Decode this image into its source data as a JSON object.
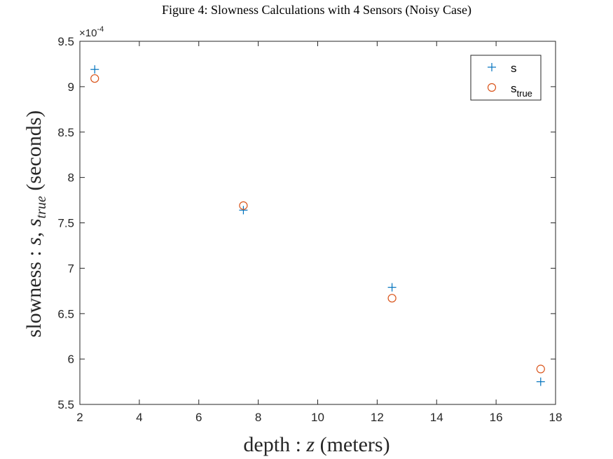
{
  "chart_data": {
    "type": "scatter",
    "title": "Figure 4: Slowness Calculations with 4 Sensors (Noisy Case)",
    "xlabel": "depth : z (meters)",
    "ylabel": "slowness : s, s_true (seconds)",
    "xlabel_parts": {
      "pre": "depth : ",
      "var": "z",
      "post": " (meters)"
    },
    "ylabel_parts": {
      "pre": "slowness : ",
      "var1": "s",
      "sep": ", ",
      "var2": "s",
      "sub": "true",
      "post": " (seconds)"
    },
    "exponent_label": {
      "base": "×10",
      "exp": "-4"
    },
    "xlim": [
      2,
      18
    ],
    "ylim": [
      5.5,
      9.5
    ],
    "xticks": [
      2,
      4,
      6,
      8,
      10,
      12,
      14,
      16,
      18
    ],
    "yticks": [
      5.5,
      6,
      6.5,
      7,
      7.5,
      8,
      8.5,
      9,
      9.5
    ],
    "ytick_labels": [
      "5.5",
      "6",
      "6.5",
      "7",
      "7.5",
      "8",
      "8.5",
      "9",
      "9.5"
    ],
    "scale_note": "y values in units of 10^-4 seconds",
    "grid": false,
    "legend_position": "top-right",
    "series": [
      {
        "name": "s",
        "label_main": "s",
        "label_sub": "",
        "marker": "plus",
        "color": "#0072BD",
        "x": [
          2.5,
          7.5,
          12.5,
          17.5
        ],
        "y": [
          9.19,
          7.64,
          6.79,
          5.75
        ]
      },
      {
        "name": "s_true",
        "label_main": "s",
        "label_sub": "true",
        "marker": "circle",
        "color": "#D95319",
        "x": [
          2.5,
          7.5,
          12.5,
          17.5
        ],
        "y": [
          9.09,
          7.69,
          6.67,
          5.89
        ]
      }
    ]
  }
}
